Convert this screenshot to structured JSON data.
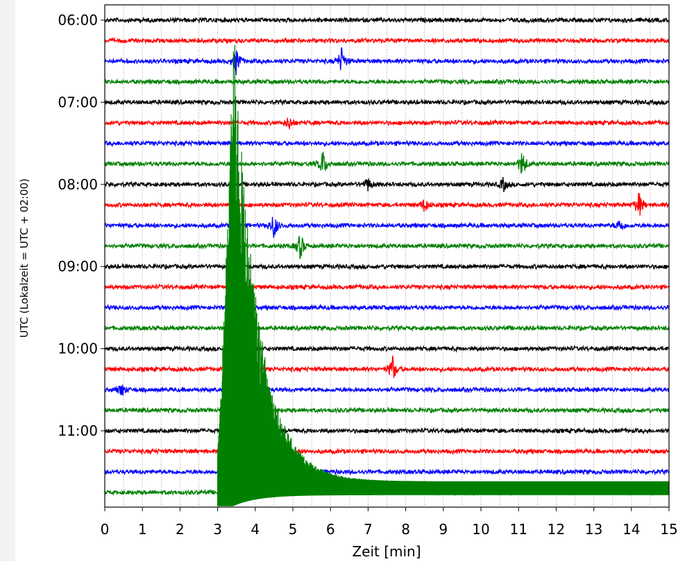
{
  "chart_data": {
    "type": "line",
    "title": "",
    "xlabel": "Zeit  [min]",
    "ylabel": "UTC (Lokalzeit = UTC + 02:00)",
    "xlim": [
      0,
      15
    ],
    "x_ticks": [
      "0",
      "1",
      "2",
      "3",
      "4",
      "5",
      "6",
      "7",
      "8",
      "9",
      "10",
      "11",
      "12",
      "13",
      "14",
      "15"
    ],
    "y_tick_labels": [
      "06:00",
      "07:00",
      "08:00",
      "09:00",
      "10:00",
      "11:00"
    ],
    "grid": "vertical dotted",
    "trace_interval_min": 15,
    "trace_colors": [
      "#000000",
      "#ff0000",
      "#0000ff",
      "#008000"
    ],
    "traces": [
      {
        "start": "06:00",
        "color": "#000000"
      },
      {
        "start": "06:15",
        "color": "#ff0000"
      },
      {
        "start": "06:30",
        "color": "#0000ff"
      },
      {
        "start": "06:45",
        "color": "#008000"
      },
      {
        "start": "07:00",
        "color": "#000000"
      },
      {
        "start": "07:15",
        "color": "#ff0000"
      },
      {
        "start": "07:30",
        "color": "#0000ff"
      },
      {
        "start": "07:45",
        "color": "#008000"
      },
      {
        "start": "08:00",
        "color": "#000000"
      },
      {
        "start": "08:15",
        "color": "#ff0000"
      },
      {
        "start": "08:30",
        "color": "#0000ff"
      },
      {
        "start": "08:45",
        "color": "#008000"
      },
      {
        "start": "09:00",
        "color": "#000000"
      },
      {
        "start": "09:15",
        "color": "#ff0000"
      },
      {
        "start": "09:30",
        "color": "#0000ff"
      },
      {
        "start": "09:45",
        "color": "#008000"
      },
      {
        "start": "10:00",
        "color": "#000000"
      },
      {
        "start": "10:15",
        "color": "#ff0000"
      },
      {
        "start": "10:30",
        "color": "#0000ff"
      },
      {
        "start": "10:45",
        "color": "#008000"
      },
      {
        "start": "11:00",
        "color": "#000000"
      },
      {
        "start": "11:15",
        "color": "#ff0000"
      },
      {
        "start": "11:30",
        "color": "#0000ff"
      },
      {
        "start": "11:45",
        "color": "#008000"
      }
    ],
    "events": [
      {
        "trace": "06:30",
        "minute": 3.5,
        "amplitude": "medium"
      },
      {
        "trace": "06:30",
        "minute": 6.3,
        "amplitude": "medium"
      },
      {
        "trace": "07:15",
        "minute": 4.9,
        "amplitude": "small"
      },
      {
        "trace": "07:45",
        "minute": 5.8,
        "amplitude": "medium"
      },
      {
        "trace": "07:45",
        "minute": 11.1,
        "amplitude": "medium"
      },
      {
        "trace": "08:00",
        "minute": 7.0,
        "amplitude": "small"
      },
      {
        "trace": "08:00",
        "minute": 10.6,
        "amplitude": "small"
      },
      {
        "trace": "08:15",
        "minute": 8.5,
        "amplitude": "small"
      },
      {
        "trace": "08:15",
        "minute": 14.2,
        "amplitude": "medium"
      },
      {
        "trace": "08:30",
        "minute": 4.5,
        "amplitude": "medium"
      },
      {
        "trace": "08:30",
        "minute": 13.7,
        "amplitude": "small"
      },
      {
        "trace": "08:45",
        "minute": 5.2,
        "amplitude": "medium"
      },
      {
        "trace": "10:15",
        "minute": 7.65,
        "amplitude": "medium"
      },
      {
        "trace": "10:30",
        "minute": 0.45,
        "amplitude": "small"
      },
      {
        "trace": "11:45",
        "minute": 3.0,
        "amplitude": "earthquake",
        "note_visible": false
      }
    ]
  }
}
